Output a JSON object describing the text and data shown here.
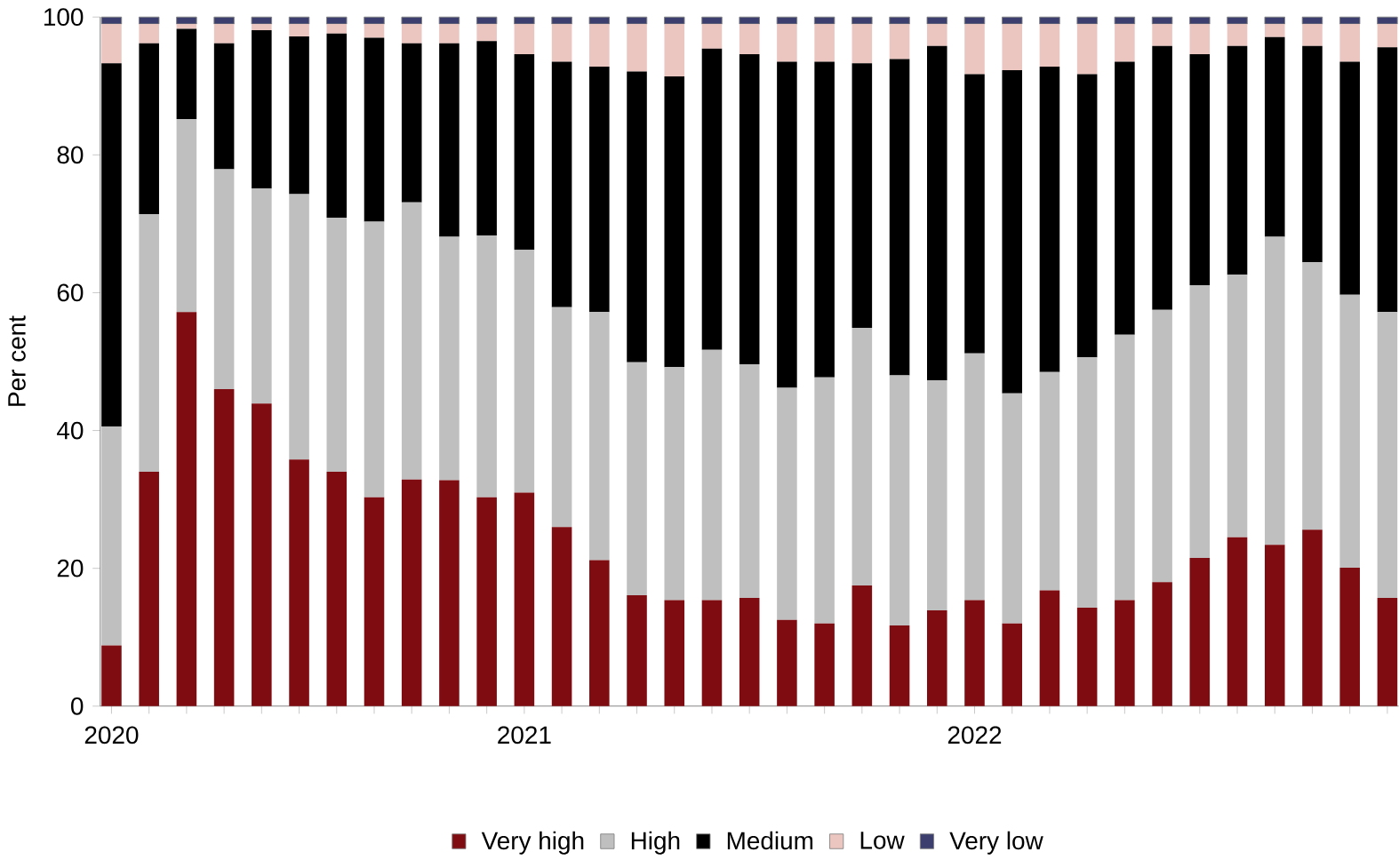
{
  "chart_data": {
    "type": "bar",
    "stacked": true,
    "ylabel": "Per cent",
    "categories": [
      "2020",
      null,
      null,
      null,
      null,
      null,
      null,
      null,
      null,
      null,
      null,
      "2021",
      null,
      null,
      null,
      null,
      null,
      null,
      null,
      null,
      null,
      null,
      null,
      "2022",
      null,
      null,
      null,
      null,
      null,
      null,
      null,
      null,
      null,
      null,
      null
    ],
    "series": [
      {
        "name": "Very high",
        "color": "#7f0c11",
        "values": [
          8.8,
          34.0,
          57.2,
          46.0,
          43.9,
          35.8,
          34.0,
          30.3,
          32.9,
          32.8,
          30.3,
          31.0,
          26.0,
          21.2,
          16.1,
          15.4,
          15.4,
          15.7,
          12.5,
          12.0,
          17.5,
          11.7,
          13.9,
          15.4,
          12.0,
          16.8,
          14.3,
          15.4,
          18.0,
          21.5,
          24.5,
          23.4,
          25.6,
          20.1,
          15.7
        ]
      },
      {
        "name": "High",
        "color": "#bfbfbf",
        "values": [
          31.8,
          37.4,
          28.0,
          31.9,
          31.2,
          38.5,
          36.9,
          40.0,
          40.2,
          35.3,
          38.0,
          35.2,
          31.9,
          36.0,
          33.8,
          33.8,
          36.3,
          33.9,
          33.7,
          35.7,
          37.4,
          36.3,
          33.4,
          35.8,
          33.4,
          31.7,
          36.3,
          38.5,
          39.5,
          39.6,
          38.1,
          44.7,
          38.8,
          39.6,
          41.5
        ]
      },
      {
        "name": "Medium",
        "color": "#000000",
        "values": [
          52.7,
          24.8,
          13.1,
          18.3,
          23.0,
          22.9,
          26.7,
          26.7,
          23.1,
          28.1,
          28.2,
          28.4,
          35.6,
          35.6,
          42.2,
          42.2,
          43.7,
          45.0,
          47.3,
          45.8,
          38.4,
          45.9,
          48.5,
          40.5,
          46.9,
          44.3,
          41.1,
          39.6,
          38.3,
          33.5,
          33.2,
          29.0,
          31.4,
          33.8,
          38.4
        ]
      },
      {
        "name": "Low",
        "color": "#ebc5c0",
        "values": [
          5.7,
          2.8,
          0.7,
          2.8,
          0.9,
          1.8,
          1.4,
          2.0,
          2.8,
          2.8,
          2.5,
          4.4,
          5.5,
          6.2,
          6.9,
          7.6,
          3.6,
          4.4,
          5.5,
          5.5,
          5.7,
          5.1,
          3.2,
          7.3,
          6.7,
          6.2,
          7.3,
          5.5,
          3.2,
          4.4,
          3.2,
          1.9,
          3.2,
          5.5,
          3.4
        ]
      },
      {
        "name": "Very low",
        "color": "#3c3f6e",
        "values": [
          1,
          1,
          1,
          1,
          1,
          1,
          1,
          1,
          1,
          1,
          1,
          1,
          1,
          1,
          1,
          1,
          1,
          1,
          1,
          1,
          1,
          1,
          1,
          1,
          1,
          1,
          1,
          1,
          1,
          1,
          1,
          1,
          1,
          1,
          1
        ]
      }
    ],
    "ylim": [
      0,
      100
    ],
    "yticks": [
      0,
      20,
      40,
      60,
      80,
      100
    ],
    "grid": false,
    "legend": "bottom"
  }
}
